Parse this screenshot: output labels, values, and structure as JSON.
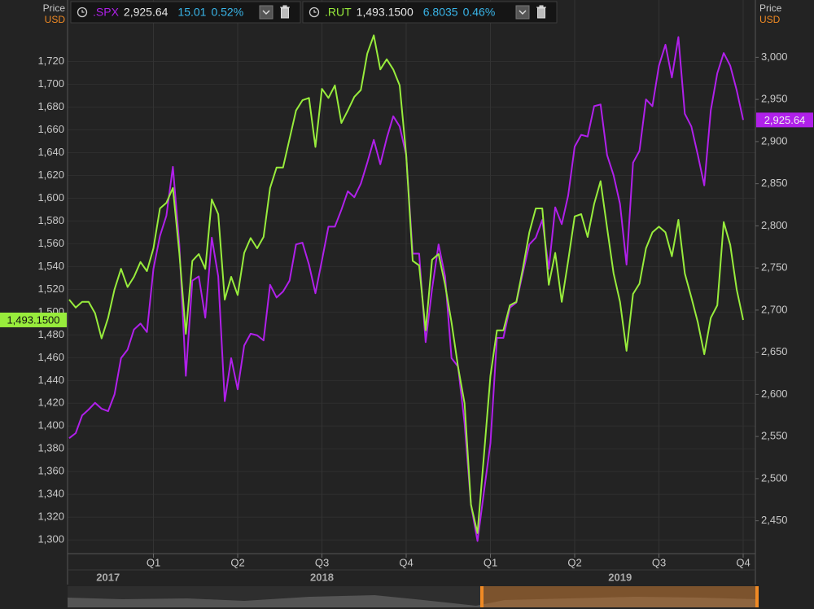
{
  "chart_data": {
    "type": "line",
    "y_axis_title": "Price",
    "y_axis_unit": "USD",
    "y2_axis_title": "Price",
    "y2_axis_unit": "USD",
    "categories": [
      null,
      null,
      null,
      null,
      null,
      null,
      null,
      null,
      null,
      null,
      null,
      null,
      null,
      "Q1",
      null,
      null,
      null,
      null,
      null,
      null,
      null,
      null,
      null,
      null,
      null,
      null,
      "Q2",
      null,
      null,
      null,
      null,
      null,
      null,
      null,
      null,
      null,
      null,
      null,
      null,
      "Q3",
      null,
      null,
      null,
      null,
      null,
      null,
      null,
      null,
      null,
      null,
      null,
      null,
      "Q4",
      null,
      null,
      null,
      null,
      null,
      null,
      null,
      null,
      null,
      null,
      null,
      null,
      "Q1",
      null,
      null,
      null,
      null,
      null,
      null,
      null,
      null,
      null,
      null,
      null,
      null,
      "Q2",
      null,
      null,
      null,
      null,
      null,
      null,
      null,
      null,
      null,
      null,
      null,
      null,
      "Q3",
      null,
      null,
      null,
      null,
      null,
      null,
      null,
      null,
      null,
      null,
      null,
      null,
      "Q4"
    ],
    "year_categories": [
      null,
      null,
      null,
      null,
      null,
      null,
      "2017",
      null,
      null,
      null,
      null,
      null,
      null,
      null,
      null,
      null,
      null,
      null,
      null,
      null,
      null,
      null,
      null,
      null,
      null,
      null,
      null,
      null,
      null,
      null,
      null,
      null,
      null,
      null,
      null,
      null,
      null,
      null,
      null,
      "2018",
      null,
      null,
      null,
      null,
      null,
      null,
      null,
      null,
      null,
      null,
      null,
      null,
      null,
      null,
      null,
      null,
      null,
      null,
      null,
      null,
      null,
      null,
      null,
      null,
      null,
      null,
      null,
      null,
      null,
      null,
      null,
      null,
      null,
      null,
      null,
      null,
      null,
      null,
      null,
      null,
      null,
      null,
      null,
      null,
      null,
      "2019",
      null,
      null,
      null,
      null,
      null,
      null,
      null,
      null,
      null,
      null,
      null,
      null,
      null,
      null,
      null,
      null,
      null,
      null,
      null
    ],
    "series": [
      {
        "name": ".SPX",
        "color": "#b020ea",
        "axis": "y2",
        "last_label": "2,925.64",
        "change_label": "15.01",
        "pct_label": "0.52%",
        "values": [
          2548,
          2554,
          2575,
          2582,
          2590,
          2583,
          2580,
          2600,
          2643,
          2653,
          2677,
          2684,
          2674,
          2749,
          2788,
          2812,
          2870,
          2778,
          2622,
          2735,
          2740,
          2691,
          2786,
          2740,
          2592,
          2643,
          2606,
          2658,
          2672,
          2670,
          2664,
          2730,
          2715,
          2722,
          2735,
          2778,
          2780,
          2754,
          2720,
          2759,
          2799,
          2799,
          2819,
          2841,
          2834,
          2850,
          2875,
          2902,
          2873,
          2904,
          2930,
          2918,
          2884,
          2767,
          2767,
          2662,
          2725,
          2778,
          2740,
          2643,
          2633,
          2566,
          2469,
          2426,
          2484,
          2542,
          2667,
          2667,
          2703,
          2709,
          2744,
          2778,
          2786,
          2807,
          2749,
          2822,
          2802,
          2836,
          2894,
          2908,
          2906,
          2942,
          2944,
          2884,
          2860,
          2826,
          2754,
          2875,
          2889,
          2950,
          2942,
          2990,
          3015,
          2976,
          3024,
          2933,
          2918,
          2884,
          2848,
          2937,
          2981,
          3005,
          2990,
          2961,
          2925.64
        ]
      },
      {
        "name": ".RUT",
        "color": "#98ec3c",
        "axis": "y",
        "last_label": "1,493.1500",
        "change_label": "6.8035",
        "pct_label": "0.46%",
        "values": [
          1511,
          1504,
          1509,
          1509,
          1499,
          1477,
          1495,
          1520,
          1538,
          1522,
          1531,
          1544,
          1536,
          1556,
          1591,
          1596,
          1609,
          1552,
          1481,
          1545,
          1551,
          1538,
          1599,
          1586,
          1511,
          1531,
          1515,
          1552,
          1565,
          1556,
          1566,
          1609,
          1627,
          1627,
          1652,
          1677,
          1686,
          1688,
          1645,
          1696,
          1688,
          1699,
          1666,
          1677,
          1689,
          1695,
          1727,
          1743,
          1713,
          1722,
          1713,
          1699,
          1638,
          1545,
          1541,
          1484,
          1546,
          1551,
          1524,
          1491,
          1452,
          1420,
          1331,
          1306,
          1374,
          1444,
          1484,
          1484,
          1506,
          1509,
          1538,
          1570,
          1591,
          1591,
          1524,
          1552,
          1509,
          1545,
          1584,
          1586,
          1566,
          1595,
          1615,
          1574,
          1534,
          1509,
          1466,
          1516,
          1525,
          1556,
          1570,
          1575,
          1570,
          1549,
          1581,
          1534,
          1513,
          1491,
          1463,
          1495,
          1506,
          1579,
          1559,
          1520,
          1493.15
        ]
      }
    ],
    "ylim": [
      1288,
      1774
    ],
    "yticks": [
      {
        "value": 1300,
        "label": "1,300"
      },
      {
        "value": 1320,
        "label": "1,320"
      },
      {
        "value": 1340,
        "label": "1,340"
      },
      {
        "value": 1360,
        "label": "1,360"
      },
      {
        "value": 1380,
        "label": "1,380"
      },
      {
        "value": 1400,
        "label": "1,400"
      },
      {
        "value": 1420,
        "label": "1,420"
      },
      {
        "value": 1440,
        "label": "1,440"
      },
      {
        "value": 1460,
        "label": "1,460"
      },
      {
        "value": 1480,
        "label": "1,480"
      },
      {
        "value": 1500,
        "label": "1,500"
      },
      {
        "value": 1520,
        "label": "1,520"
      },
      {
        "value": 1540,
        "label": "1,540"
      },
      {
        "value": 1560,
        "label": "1,560"
      },
      {
        "value": 1580,
        "label": "1,580"
      },
      {
        "value": 1600,
        "label": "1,600"
      },
      {
        "value": 1620,
        "label": "1,620"
      },
      {
        "value": 1640,
        "label": "1,640"
      },
      {
        "value": 1660,
        "label": "1,660"
      },
      {
        "value": 1680,
        "label": "1,680"
      },
      {
        "value": 1700,
        "label": "1,700"
      },
      {
        "value": 1720,
        "label": "1,720"
      }
    ],
    "y2lim": [
      2411,
      3068
    ],
    "y2ticks": [
      {
        "value": 2450,
        "label": "2,450"
      },
      {
        "value": 2500,
        "label": "2,500"
      },
      {
        "value": 2550,
        "label": "2,550"
      },
      {
        "value": 2600,
        "label": "2,600"
      },
      {
        "value": 2650,
        "label": "2,650"
      },
      {
        "value": 2700,
        "label": "2,700"
      },
      {
        "value": 2750,
        "label": "2,750"
      },
      {
        "value": 2800,
        "label": "2,800"
      },
      {
        "value": 2850,
        "label": "2,850"
      },
      {
        "value": 2900,
        "label": "2,900"
      },
      {
        "value": 2950,
        "label": "2,950"
      },
      {
        "value": 3000,
        "label": "3,000"
      }
    ],
    "grid": true
  }
}
